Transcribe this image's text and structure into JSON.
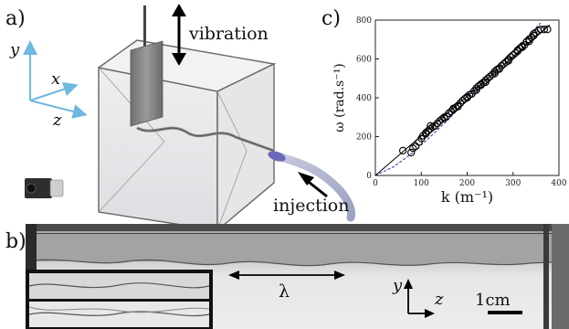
{
  "panel_a": {
    "label": "a)",
    "vibration_label": "vibration",
    "injection_label": "injection",
    "axes": {
      "x": "x",
      "y": "y",
      "z": "z"
    },
    "axis_color": "#6fb8e0"
  },
  "panel_b": {
    "label": "b)",
    "wavelength_symbol": "λ",
    "axes": {
      "y": "y",
      "z": "z"
    },
    "scale_label": "1cm"
  },
  "panel_c": {
    "label": "c)",
    "chart_data": {
      "type": "scatter",
      "xlabel": "k (m⁻¹)",
      "ylabel": "ω (rad.s⁻¹)",
      "xlim": [
        0,
        400
      ],
      "ylim": [
        0,
        800
      ],
      "xticks": [
        0,
        100,
        200,
        300,
        400
      ],
      "yticks": [
        0,
        200,
        400,
        600,
        800
      ],
      "grid": false,
      "marker_color": "#000000",
      "fit_line_color": "#000000",
      "dashed_line_color": "#2c2ca8",
      "points": [
        [
          60,
          128
        ],
        [
          78,
          118
        ],
        [
          82,
          140
        ],
        [
          88,
          150
        ],
        [
          95,
          172
        ],
        [
          100,
          190
        ],
        [
          104,
          205
        ],
        [
          110,
          220
        ],
        [
          115,
          230
        ],
        [
          120,
          240
        ],
        [
          125,
          250
        ],
        [
          130,
          255
        ],
        [
          135,
          268
        ],
        [
          140,
          280
        ],
        [
          145,
          290
        ],
        [
          150,
          300
        ],
        [
          155,
          305
        ],
        [
          160,
          320
        ],
        [
          165,
          330
        ],
        [
          170,
          345
        ],
        [
          175,
          350
        ],
        [
          180,
          360
        ],
        [
          185,
          372
        ],
        [
          190,
          385
        ],
        [
          195,
          395
        ],
        [
          200,
          405
        ],
        [
          205,
          415
        ],
        [
          210,
          420
        ],
        [
          215,
          435
        ],
        [
          220,
          450
        ],
        [
          225,
          460
        ],
        [
          230,
          470
        ],
        [
          235,
          478
        ],
        [
          240,
          490
        ],
        [
          245,
          500
        ],
        [
          250,
          510
        ],
        [
          255,
          520
        ],
        [
          260,
          535
        ],
        [
          265,
          545
        ],
        [
          270,
          552
        ],
        [
          275,
          565
        ],
        [
          280,
          575
        ],
        [
          285,
          585
        ],
        [
          290,
          598
        ],
        [
          295,
          610
        ],
        [
          300,
          620
        ],
        [
          305,
          630
        ],
        [
          310,
          645
        ],
        [
          315,
          655
        ],
        [
          320,
          665
        ],
        [
          325,
          672
        ],
        [
          330,
          690
        ],
        [
          335,
          700
        ],
        [
          340,
          710
        ],
        [
          345,
          720
        ],
        [
          350,
          735
        ],
        [
          355,
          745
        ],
        [
          360,
          752
        ],
        [
          368,
          752
        ],
        [
          375,
          752
        ],
        [
          120,
          255
        ],
        [
          170,
          340
        ],
        [
          220,
          440
        ],
        [
          270,
          548
        ],
        [
          320,
          660
        ],
        [
          345,
          730
        ],
        [
          240,
          480
        ],
        [
          150,
          295
        ],
        [
          200,
          400
        ],
        [
          290,
          590
        ],
        [
          310,
          640
        ],
        [
          335,
          690
        ],
        [
          180,
          355
        ],
        [
          260,
          525
        ],
        [
          230,
          465
        ],
        [
          110,
          215
        ]
      ],
      "fit_line": [
        [
          0,
          0
        ],
        [
          380,
          775
        ]
      ],
      "dashed_curve": [
        [
          0,
          0
        ],
        [
          40,
          45
        ],
        [
          80,
          115
        ],
        [
          120,
          200
        ],
        [
          160,
          290
        ],
        [
          200,
          390
        ],
        [
          240,
          490
        ],
        [
          280,
          590
        ],
        [
          320,
          690
        ],
        [
          360,
          785
        ]
      ]
    }
  }
}
